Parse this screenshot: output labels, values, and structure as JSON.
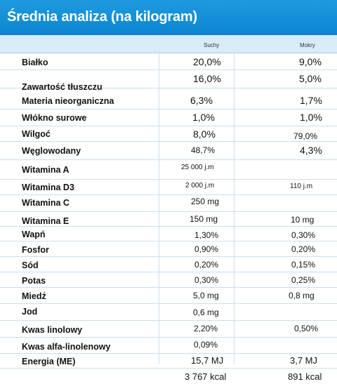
{
  "title": "Średnia analiza (na kilogram)",
  "columns": {
    "dry": "Suchy",
    "wet": "Mokry"
  },
  "rows": [
    {
      "name": "Białko",
      "dry": "20,0%",
      "wet": "9,0%"
    },
    {
      "name": "Zawartość tłuszczu",
      "dry": "16,0%",
      "wet": "5,0%"
    },
    {
      "name": "Materia nieorganiczna",
      "dry": "6,3%",
      "wet": "1,7%"
    },
    {
      "name": "Włókno surowe",
      "dry": "1,0%",
      "wet": "1,0%"
    },
    {
      "name": "Wilgoć",
      "dry": "8,0%",
      "wet": "79,0%"
    },
    {
      "name": "Węglowodany",
      "dry": "48,7%",
      "wet": "4,3%"
    },
    {
      "name": "Witamina A",
      "dry": "25 000 j.m",
      "wet": ""
    },
    {
      "name": "Witamina D3",
      "dry": "2 000 j.m",
      "wet": "110 j.m"
    },
    {
      "name": "Witamina C",
      "dry": "250 mg",
      "wet": ""
    },
    {
      "name": "Witamina E",
      "dry": "150 mg",
      "wet": "10 mg"
    },
    {
      "name": "Wapń",
      "dry": "1,30%",
      "wet": "0,30%"
    },
    {
      "name": "Fosfor",
      "dry": "0,90%",
      "wet": "0,20%"
    },
    {
      "name": "Sód",
      "dry": "0,20%",
      "wet": "0,15%"
    },
    {
      "name": "Potas",
      "dry": "0,30%",
      "wet": "0,25%"
    },
    {
      "name": "Miedź",
      "dry": "5,0 mg",
      "wet": "0,8 mg"
    },
    {
      "name": "Jod",
      "dry": "0,6 mg",
      "wet": ""
    },
    {
      "name": "Kwas linolowy",
      "dry": "2,20%",
      "wet": "0,50%"
    },
    {
      "name": "Kwas alfa-linolenowy",
      "dry": "0,09%",
      "wet": ""
    },
    {
      "name": "Energia (ME)",
      "dry": "15,7 MJ",
      "wet": "3,7 MJ"
    },
    {
      "name": "",
      "dry": "3 767 kcal",
      "wet": "891 kcal"
    }
  ],
  "colors": {
    "header": "#0a84cf",
    "subheader": "#d8ebf8",
    "grid": "#c9dfef"
  }
}
